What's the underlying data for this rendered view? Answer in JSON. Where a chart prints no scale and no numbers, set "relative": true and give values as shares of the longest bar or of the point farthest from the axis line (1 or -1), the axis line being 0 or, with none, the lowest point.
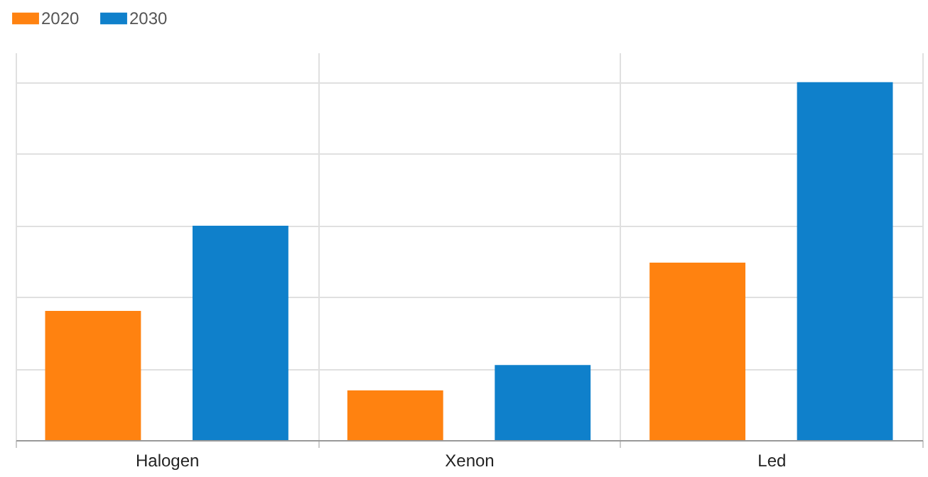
{
  "chart_data": {
    "type": "bar",
    "relative": true,
    "categories": [
      "Halogen",
      "Xenon",
      "Led"
    ],
    "series": [
      {
        "name": "2020",
        "color": "#ff8210",
        "values": [
          0.361,
          0.139,
          0.496
        ]
      },
      {
        "name": "2030",
        "color": "#0f80cb",
        "values": [
          0.599,
          0.21,
          1
        ]
      }
    ],
    "grid": true,
    "legend": "top"
  }
}
